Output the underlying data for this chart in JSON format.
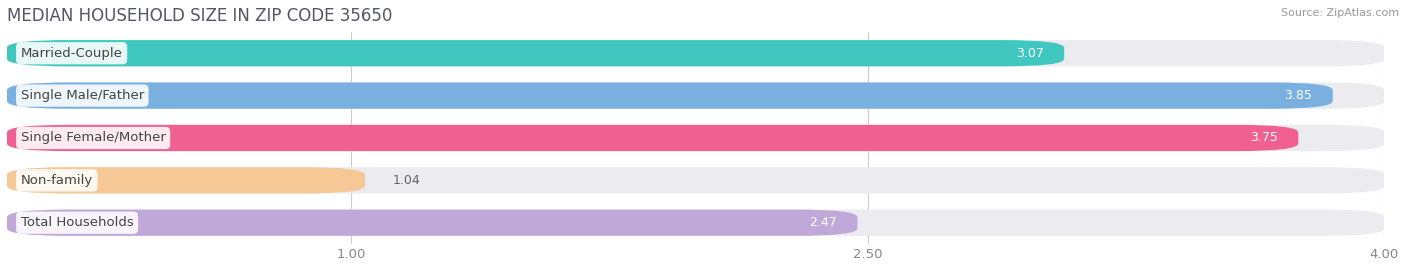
{
  "title": "MEDIAN HOUSEHOLD SIZE IN ZIP CODE 35650",
  "source": "Source: ZipAtlas.com",
  "categories": [
    "Married-Couple",
    "Single Male/Father",
    "Single Female/Mother",
    "Non-family",
    "Total Households"
  ],
  "values": [
    3.07,
    3.85,
    3.75,
    1.04,
    2.47
  ],
  "bar_colors": [
    "#40c8c0",
    "#7ab0e0",
    "#f06090",
    "#f5c896",
    "#c0a8d8"
  ],
  "xlim_data": [
    0.0,
    4.0
  ],
  "xmin": 1.0,
  "xticks": [
    1.0,
    2.5,
    4.0
  ],
  "xlabel_labels": [
    "1.00",
    "2.50",
    "4.00"
  ],
  "bar_height": 0.62,
  "bar_gap": 0.18,
  "background_color": "#ffffff",
  "bar_background_color": "#ebebf0",
  "title_fontsize": 12,
  "label_fontsize": 9.5,
  "value_fontsize": 9,
  "source_fontsize": 8,
  "title_color": "#555566",
  "label_color": "#444444",
  "value_color_inside": "#ffffff",
  "value_color_outside": "#666666",
  "grid_color": "#cccccc",
  "tick_color": "#888888"
}
